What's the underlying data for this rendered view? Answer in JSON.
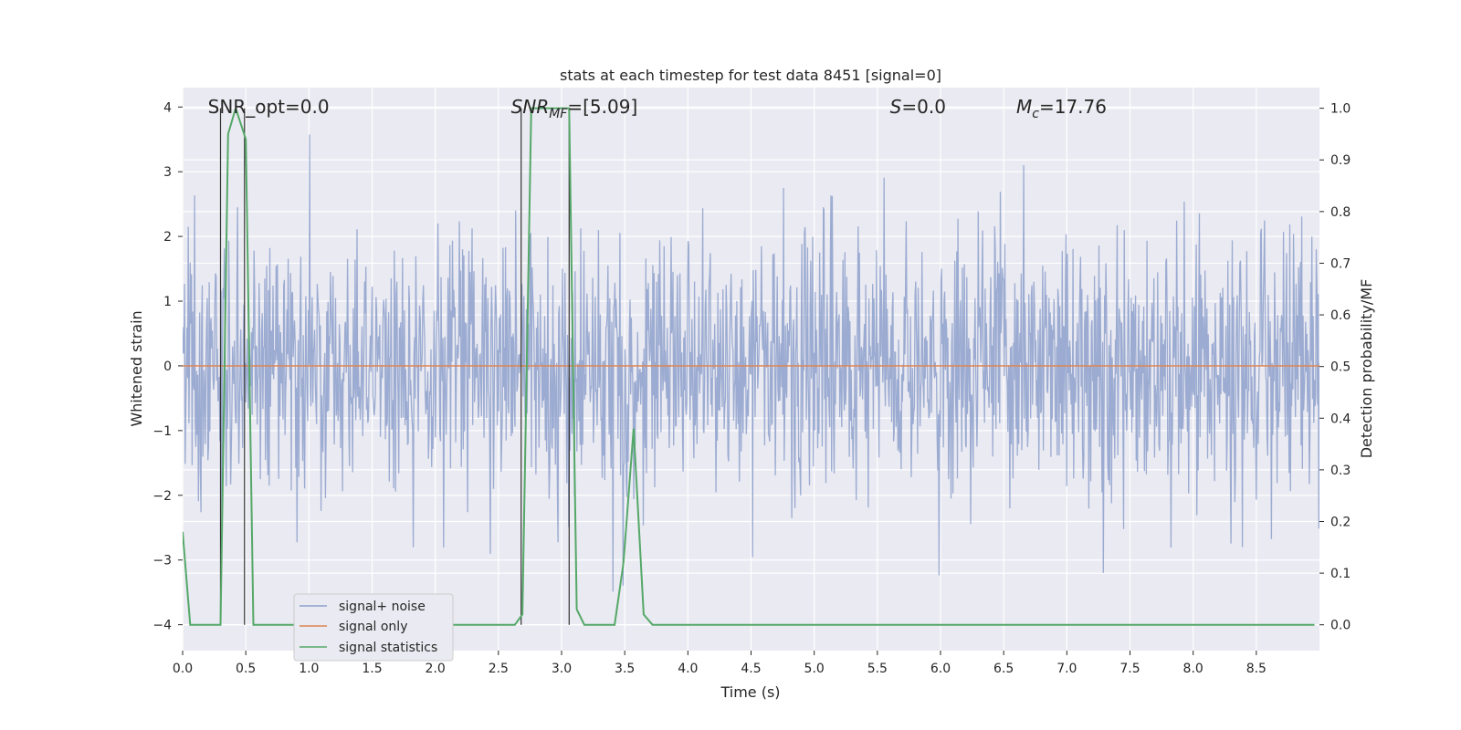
{
  "chart_data": {
    "type": "line",
    "title": "stats at each timestep for test data 8451 [signal=0]",
    "xlabel": "Time (s)",
    "ylabel_left": "Whitened strain",
    "ylabel_right": "Detection probability/MF",
    "xlim": [
      0.0,
      9.0
    ],
    "ylim_left": [
      -4.4,
      4.3
    ],
    "ylim_right": [
      -0.05,
      1.04
    ],
    "x_ticks": [
      "0.0",
      "0.5",
      "1.0",
      "1.5",
      "2.0",
      "2.5",
      "3.0",
      "3.5",
      "4.0",
      "4.5",
      "5.0",
      "5.5",
      "6.0",
      "6.5",
      "7.0",
      "7.5",
      "8.0",
      "8.5"
    ],
    "y_left_ticks": [
      "4",
      "3",
      "2",
      "1",
      "0",
      "−1",
      "−2",
      "−3",
      "−4"
    ],
    "y_right_ticks": [
      "1.0",
      "0.9",
      "0.8",
      "0.7",
      "0.6",
      "0.5",
      "0.4",
      "0.3",
      "0.2",
      "0.1",
      "0.0"
    ],
    "grid": true,
    "legend_position": "bottom-left",
    "annotations": [
      {
        "text": "SNR_opt=0.0",
        "x": 0.2
      },
      {
        "text": "SNR",
        "sub": "MF",
        "suffix": "=[5.09]",
        "x": 2.6
      },
      {
        "text": "S",
        "suffix": "=0.0",
        "x": 5.6
      },
      {
        "text": "M",
        "sub": "c",
        "suffix": "=17.76",
        "x": 6.6
      }
    ],
    "series": [
      {
        "name": "signal+ noise",
        "color": "#8da0cb",
        "description_axis": "left",
        "amplitude_envelope": {
          "typical": 1.6,
          "peak_max": 4.0,
          "peak_min": -4.0
        }
      },
      {
        "name": "signal only",
        "color": "#dd8452",
        "axis": "left",
        "x": [
          0.0,
          9.0
        ],
        "y": [
          0.0,
          0.0
        ]
      },
      {
        "name": "signal statistics",
        "color": "#55a868",
        "axis": "right",
        "x": [
          0.0,
          0.06,
          0.1,
          0.3,
          0.36,
          0.42,
          0.5,
          0.56,
          2.63,
          2.69,
          2.76,
          3.06,
          3.12,
          3.18,
          3.42,
          3.49,
          3.57,
          3.65,
          3.72,
          8.96
        ],
        "y": [
          0.18,
          0.0,
          0.0,
          0.0,
          0.95,
          1.0,
          0.94,
          0.0,
          0.0,
          0.02,
          1.0,
          1.0,
          0.03,
          0.0,
          0.0,
          0.12,
          0.38,
          0.02,
          0.0,
          0.0
        ]
      }
    ],
    "vertical_markers": [
      0.3,
      0.49,
      2.68,
      3.06
    ]
  }
}
